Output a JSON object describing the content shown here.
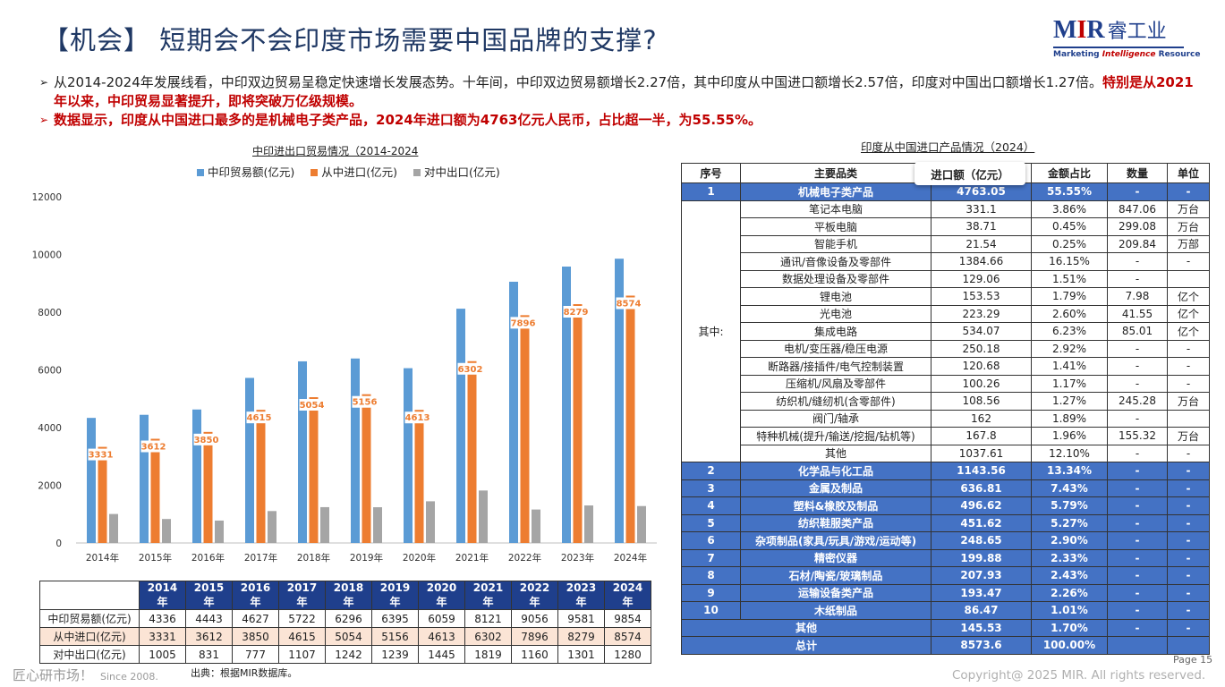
{
  "header": {
    "title": "【机会】 短期会不会印度市场需要中国品牌的支撑?",
    "logo_main_pre": "M",
    "logo_main_bar": "I",
    "logo_main_post": "R",
    "logo_cn": "睿工业",
    "logo_tag_pre": "Marketing ",
    "logo_tag_it": "Intelligence",
    "logo_tag_post": " Resource"
  },
  "bullets": {
    "arrow": "➢",
    "b1": "从2014-2024年发展线看，中印双边贸易呈稳定快速增长发展态势。十年间，中印双边贸易额增长2.27倍，其中印度从中国进口额增长2.57倍，印度对中国出口额增长1.27倍。",
    "b1_red": "特别是从2021年以来，中印贸易显著提升，即将突破万亿级规模。",
    "b2": "数据显示，印度从中国进口最多的是机械电子类产品，2024年进口额为4763亿元人民币，占比超一半，为55.55%。"
  },
  "chart_data": {
    "type": "bar",
    "title": "中印进出口贸易情况（2014-2024",
    "categories": [
      "2014年",
      "2015年",
      "2016年",
      "2017年",
      "2018年",
      "2019年",
      "2020年",
      "2021年",
      "2022年",
      "2023年",
      "2024年"
    ],
    "series": [
      {
        "name": "中印贸易额(亿元)",
        "color": "#5b9bd5",
        "values": [
          4336,
          4443,
          4627,
          5722,
          6296,
          6395,
          6059,
          8121,
          9056,
          9581,
          9854
        ]
      },
      {
        "name": "从中进口(亿元)",
        "color": "#ed7d31",
        "values": [
          3331,
          3612,
          3850,
          4615,
          5054,
          5156,
          4613,
          6302,
          7896,
          8279,
          8574
        ]
      },
      {
        "name": "对中出口(亿元)",
        "color": "#a5a5a5",
        "values": [
          1005,
          831,
          777,
          1107,
          1242,
          1239,
          1445,
          1819,
          1160,
          1301,
          1280
        ]
      }
    ],
    "data_labels_series": "从中进口(亿元)",
    "ylim": [
      0,
      12000
    ],
    "yticks": [
      "0",
      "2000",
      "4000",
      "6000",
      "8000",
      "10000",
      "12000"
    ],
    "legend_position": "top",
    "grid": false
  },
  "data_table": {
    "corner": "",
    "years": [
      "2014年",
      "2015年",
      "2016年",
      "2017年",
      "2018年",
      "2019年",
      "2020年",
      "2021年",
      "2022年",
      "2023年",
      "2024年"
    ],
    "rows": [
      {
        "label": "中印贸易额(亿元)",
        "values": [
          "4336",
          "4443",
          "4627",
          "5722",
          "6296",
          "6395",
          "6059",
          "8121",
          "9056",
          "9581",
          "9854"
        ]
      },
      {
        "label": "从中进口(亿元)",
        "values": [
          "3331",
          "3612",
          "3850",
          "4615",
          "5054",
          "5156",
          "4613",
          "6302",
          "7896",
          "8279",
          "8574"
        ]
      },
      {
        "label": "对中出口(亿元)",
        "values": [
          "1005",
          "831",
          "777",
          "1107",
          "1242",
          "1239",
          "1445",
          "1819",
          "1160",
          "1301",
          "1280"
        ]
      }
    ]
  },
  "product_table": {
    "title": "印度从中国进口产品情况（2024）",
    "headers": [
      "序号",
      "主要品类",
      "进口额（亿元）",
      "金额占比",
      "数量",
      "单位"
    ],
    "top": [
      "1",
      "机械电子类产品",
      "4763.05",
      "55.55%",
      "-",
      "-"
    ],
    "sub_label": "其中:",
    "sub_rows": [
      [
        "笔记本电脑",
        "331.1",
        "3.86%",
        "847.06",
        "万台"
      ],
      [
        "平板电脑",
        "38.71",
        "0.45%",
        "299.08",
        "万台"
      ],
      [
        "智能手机",
        "21.54",
        "0.25%",
        "209.84",
        "万部"
      ],
      [
        "通讯/音像设备及零部件",
        "1384.66",
        "16.15%",
        "-",
        "-"
      ],
      [
        "数据处理设备及零部件",
        "129.06",
        "1.51%",
        "-",
        ""
      ],
      [
        "锂电池",
        "153.53",
        "1.79%",
        "7.98",
        "亿个"
      ],
      [
        "光电池",
        "223.29",
        "2.60%",
        "41.55",
        "亿个"
      ],
      [
        "集成电路",
        "534.07",
        "6.23%",
        "85.01",
        "亿个"
      ],
      [
        "电机/变压器/稳压电源",
        "250.18",
        "2.92%",
        "-",
        "-"
      ],
      [
        "断路器/接插件/电气控制装置",
        "120.68",
        "1.41%",
        "-",
        "-"
      ],
      [
        "压缩机/风扇及零部件",
        "100.26",
        "1.17%",
        "-",
        "-"
      ],
      [
        "纺织机/缝纫机(含零部件)",
        "108.56",
        "1.27%",
        "245.28",
        "万台"
      ],
      [
        "阀门/轴承",
        "162",
        "1.89%",
        "-",
        ""
      ],
      [
        "特种机械(提升/输送/挖掘/钻机等)",
        "167.8",
        "1.96%",
        "155.32",
        "万台"
      ],
      [
        "其他",
        "1037.61",
        "12.10%",
        "-",
        "-"
      ]
    ],
    "main_rows": [
      [
        "2",
        "化学品与化工品",
        "1143.56",
        "13.34%",
        "-",
        "-"
      ],
      [
        "3",
        "金属及制品",
        "636.81",
        "7.43%",
        "-",
        "-"
      ],
      [
        "4",
        "塑料&橡胶及制品",
        "496.62",
        "5.79%",
        "-",
        "-"
      ],
      [
        "5",
        "纺织鞋服类产品",
        "451.62",
        "5.27%",
        "-",
        "-"
      ],
      [
        "6",
        "杂项制品(家具/玩具/游戏/运动等)",
        "248.65",
        "2.90%",
        "-",
        "-"
      ],
      [
        "7",
        "精密仪器",
        "199.88",
        "2.33%",
        "-",
        "-"
      ],
      [
        "8",
        "石材/陶瓷/玻璃制品",
        "207.93",
        "2.43%",
        "-",
        "-"
      ],
      [
        "9",
        "运输设备类产品",
        "193.47",
        "2.26%",
        "-",
        "-"
      ],
      [
        "10",
        "木纸制品",
        "86.47",
        "1.01%",
        "-",
        "-"
      ]
    ],
    "other_row": [
      "其他",
      "145.53",
      "1.70%",
      "-",
      "-"
    ],
    "total_row": [
      "总计",
      "8573.6",
      "100.00%",
      "",
      ""
    ]
  },
  "footer": {
    "slogan": "匠心研市场！",
    "since": "Since 2008.",
    "source": "出典：根据MIR数据库。",
    "page": "Page 15",
    "copyright": "Copyright@ 2025 MIR. All rights reserved."
  }
}
